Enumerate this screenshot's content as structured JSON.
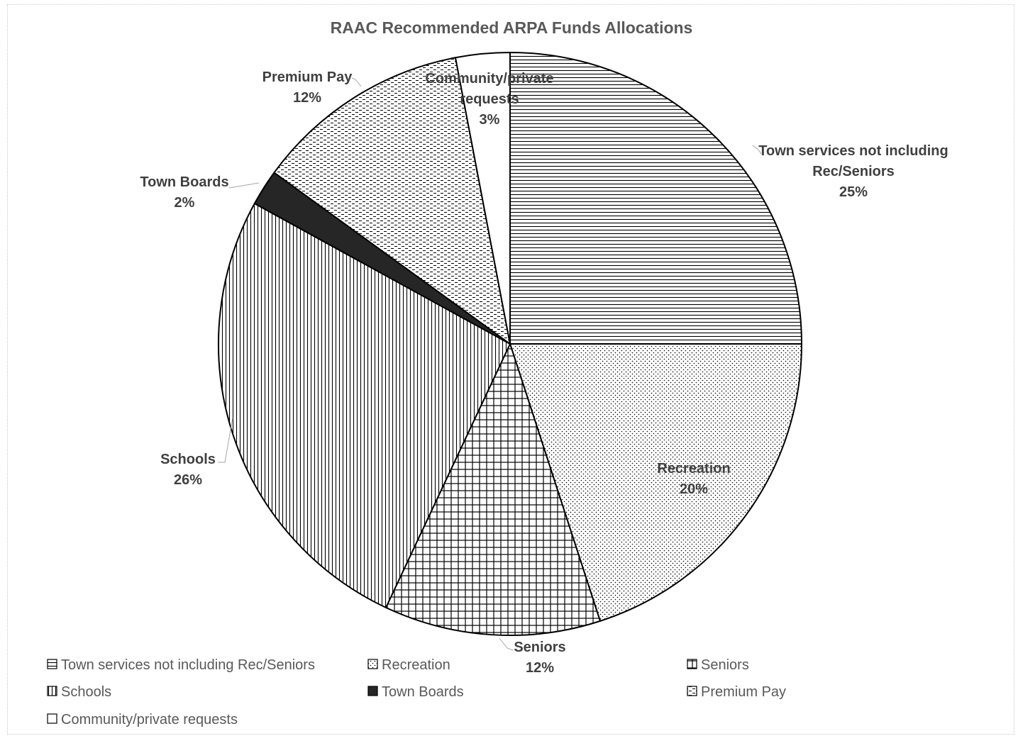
{
  "chart_data": {
    "type": "pie",
    "title": "RAAC Recommended ARPA Funds Allocations",
    "slices": [
      {
        "label": "Town services not including Rec/Seniors",
        "label_lines": [
          "Town services not including",
          "Rec/Seniors"
        ],
        "value": 25,
        "pct_text": "25%",
        "pattern": "horizontal-lines"
      },
      {
        "label": "Recreation",
        "label_lines": [
          "Recreation"
        ],
        "value": 20,
        "pct_text": "20%",
        "pattern": "dots"
      },
      {
        "label": "Seniors",
        "label_lines": [
          "Seniors"
        ],
        "value": 12,
        "pct_text": "12%",
        "pattern": "grid"
      },
      {
        "label": "Schools",
        "label_lines": [
          "Schools"
        ],
        "value": 26,
        "pct_text": "26%",
        "pattern": "vertical-lines"
      },
      {
        "label": "Town Boards",
        "label_lines": [
          "Town Boards"
        ],
        "value": 2,
        "pct_text": "2%",
        "pattern": "solid-dark"
      },
      {
        "label": "Premium Pay",
        "label_lines": [
          "Premium Pay"
        ],
        "value": 12,
        "pct_text": "12%",
        "pattern": "dashes"
      },
      {
        "label": "Community/private requests",
        "label_lines": [
          "Community/private",
          "requests"
        ],
        "value": 3,
        "pct_text": "3%",
        "pattern": "white"
      }
    ],
    "legend": {
      "placement": "bottom",
      "entries": [
        "Town services not including Rec/Seniors",
        "Recreation",
        "Seniors",
        "Schools",
        "Town Boards",
        "Premium Pay",
        "Community/private requests"
      ]
    },
    "colors": {
      "stroke": "#000000",
      "dark_fill": "#262626",
      "label_text": "#404040",
      "title_text": "#595959"
    }
  }
}
